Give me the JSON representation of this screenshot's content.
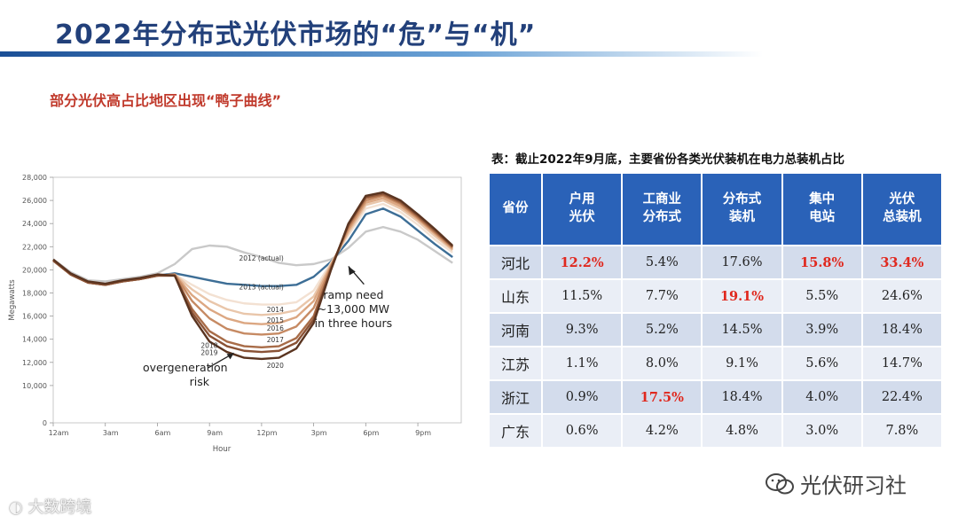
{
  "page": {
    "title": "2022年分布式光伏市场的“危”与“机”",
    "subtitle": "部分光伏高占比地区出现“鸭子曲线”",
    "watermark_left": "大数跨境",
    "watermark_right": "光伏研习社"
  },
  "chart_data": {
    "type": "line",
    "xlabel": "Hour",
    "ylabel": "Megawatts",
    "x": [
      0,
      1,
      2,
      3,
      4,
      5,
      6,
      7,
      8,
      9,
      10,
      11,
      12,
      13,
      14,
      15,
      16,
      17,
      18,
      19,
      20,
      21,
      22,
      23
    ],
    "x_tick_labels": [
      "12am",
      "3am",
      "6am",
      "9am",
      "12pm",
      "3pm",
      "6pm",
      "9pm"
    ],
    "x_ticks": [
      0,
      3,
      6,
      9,
      12,
      15,
      18,
      21
    ],
    "xlim": [
      0,
      23.5
    ],
    "ylim": [
      0,
      28000
    ],
    "y_ticks": [
      0,
      10000,
      12000,
      14000,
      16000,
      18000,
      20000,
      22000,
      24000,
      26000,
      28000
    ],
    "y_tick_labels": [
      "0",
      "10,000",
      "12,000",
      "14,000",
      "16,000",
      "18,000",
      "20,000",
      "22,000",
      "24,000",
      "26,000",
      "28,000"
    ],
    "series": [
      {
        "name": "2012 (actual)",
        "color": "#c9c9c9",
        "values": [
          20900,
          19800,
          19100,
          19000,
          19200,
          19400,
          19700,
          20500,
          21800,
          22100,
          22000,
          21500,
          21100,
          20600,
          20400,
          20500,
          20900,
          21900,
          23300,
          23700,
          23300,
          22600,
          21600,
          20600
        ]
      },
      {
        "name": "2013 (actual)",
        "color": "#3d6e96",
        "values": [
          20800,
          19600,
          18900,
          18700,
          19000,
          19200,
          19500,
          19700,
          19400,
          19100,
          18800,
          18700,
          18600,
          18600,
          18700,
          19400,
          20700,
          22500,
          24800,
          25300,
          24600,
          23400,
          22200,
          21100
        ]
      },
      {
        "name": "2014",
        "color": "#f3e1d2",
        "values": [
          20800,
          19600,
          18900,
          18700,
          19000,
          19200,
          19500,
          19600,
          18700,
          17900,
          17400,
          17100,
          17000,
          17000,
          17200,
          18200,
          20600,
          23000,
          25300,
          25700,
          25000,
          23900,
          22600,
          21500
        ]
      },
      {
        "name": "2015",
        "color": "#e9c6aa",
        "values": [
          20800,
          19600,
          18900,
          18700,
          19000,
          19200,
          19500,
          19600,
          18300,
          17300,
          16600,
          16200,
          16100,
          16200,
          16500,
          17700,
          20500,
          23200,
          25600,
          26000,
          25300,
          24200,
          22900,
          21700
        ]
      },
      {
        "name": "2016",
        "color": "#dca782",
        "values": [
          20800,
          19600,
          18900,
          18700,
          19000,
          19200,
          19500,
          19600,
          17800,
          16600,
          15800,
          15400,
          15300,
          15400,
          15900,
          17300,
          20400,
          23400,
          25800,
          26200,
          25500,
          24400,
          23100,
          21800
        ]
      },
      {
        "name": "2017",
        "color": "#c68a63",
        "values": [
          20800,
          19600,
          18900,
          18700,
          19000,
          19200,
          19500,
          19600,
          17300,
          15800,
          14900,
          14500,
          14400,
          14500,
          15100,
          16700,
          20300,
          23600,
          26000,
          26400,
          25700,
          24500,
          23200,
          21900
        ]
      },
      {
        "name": "2018",
        "color": "#a86c48",
        "values": [
          20800,
          19600,
          18900,
          18700,
          19000,
          19200,
          19500,
          19500,
          16600,
          14700,
          13800,
          13400,
          13300,
          13400,
          14100,
          16000,
          20200,
          23800,
          26200,
          26500,
          25800,
          24600,
          23300,
          22000
        ]
      },
      {
        "name": "2019",
        "color": "#8a5235",
        "values": [
          20800,
          19600,
          18900,
          18700,
          19000,
          19200,
          19500,
          19500,
          16300,
          14300,
          13400,
          13000,
          12900,
          13000,
          13700,
          15700,
          20100,
          23900,
          26300,
          26600,
          25900,
          24700,
          23400,
          22000
        ]
      },
      {
        "name": "2020",
        "color": "#5a3420",
        "values": [
          20900,
          19700,
          19000,
          18800,
          19100,
          19300,
          19600,
          19500,
          16000,
          13800,
          12900,
          12400,
          12300,
          12400,
          13200,
          15400,
          20000,
          24000,
          26400,
          26700,
          26000,
          24800,
          23500,
          22100
        ]
      }
    ],
    "annotations": {
      "ramp": "ramp need\n~13,000 MW\nin three hours",
      "overgen": "overgeneration\nrisk"
    }
  },
  "table": {
    "caption": "表：截止2022年9月底，主要省份各类光伏装机在电力总装机占比",
    "headers": [
      "省份",
      "户用\n光伏",
      "工商业\n分布式",
      "分布式\n装机",
      "集中\n电站",
      "光伏\n总装机"
    ],
    "rows": [
      {
        "cells": [
          "河北",
          "12.2%",
          "5.4%",
          "17.6%",
          "15.8%",
          "33.4%"
        ],
        "highlight": [
          1,
          4,
          5
        ]
      },
      {
        "cells": [
          "山东",
          "11.5%",
          "7.7%",
          "19.1%",
          "5.5%",
          "24.6%"
        ],
        "highlight": [
          3
        ]
      },
      {
        "cells": [
          "河南",
          "9.3%",
          "5.2%",
          "14.5%",
          "3.9%",
          "18.4%"
        ],
        "highlight": []
      },
      {
        "cells": [
          "江苏",
          "1.1%",
          "8.0%",
          "9.1%",
          "5.6%",
          "14.7%"
        ],
        "highlight": []
      },
      {
        "cells": [
          "浙江",
          "0.9%",
          "17.5%",
          "18.4%",
          "4.0%",
          "22.4%"
        ],
        "highlight": [
          2
        ]
      },
      {
        "cells": [
          "广东",
          "0.6%",
          "4.2%",
          "4.8%",
          "3.0%",
          "7.8%"
        ],
        "highlight": []
      }
    ]
  }
}
